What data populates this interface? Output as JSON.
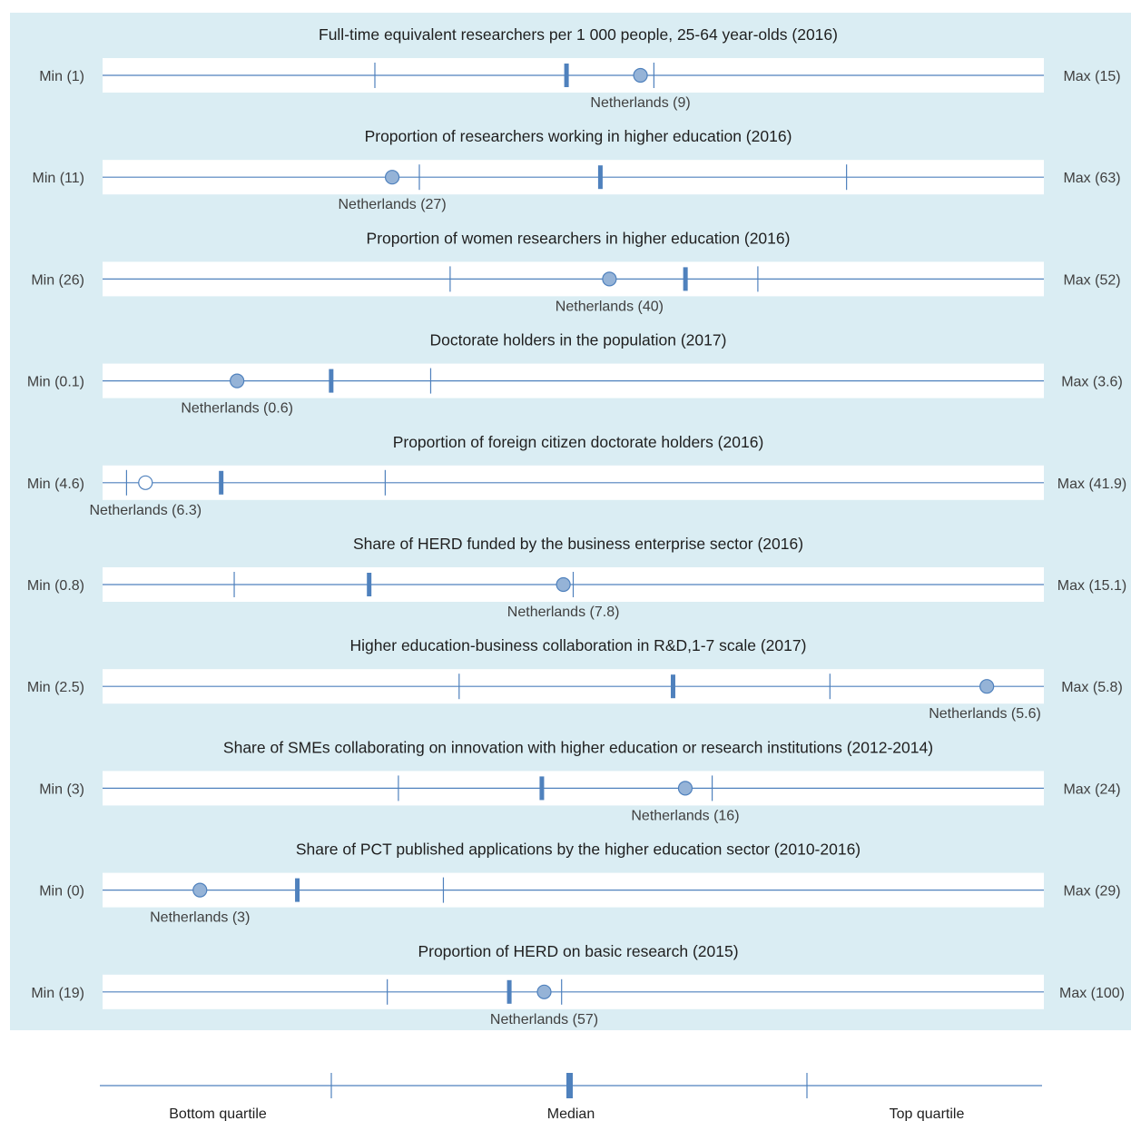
{
  "chart_data": [
    {
      "type": "bullet",
      "title": "Full-time equivalent researchers per 1 000 people, 25-64 year-olds (2016)",
      "min": 1,
      "max": 15,
      "min_label": "Min (1)",
      "max_label": "Max (15)",
      "q1": 5.05,
      "median": 7.9,
      "q3": 9.2,
      "country": "Netherlands",
      "value": 9,
      "value_label": "Netherlands (9)",
      "marker": "filled"
    },
    {
      "type": "bullet",
      "title": "Proportion of researchers working in higher education (2016)",
      "min": 11,
      "max": 63,
      "min_label": "Min (11)",
      "max_label": "Max (63)",
      "q1": 28.5,
      "median": 38.5,
      "q3": 52.1,
      "country": "Netherlands",
      "value": 27,
      "value_label": "Netherlands (27)",
      "marker": "filled"
    },
    {
      "type": "bullet",
      "title": "Proportion of women researchers in higher education (2016)",
      "min": 26,
      "max": 52,
      "min_label": "Min (26)",
      "max_label": "Max (52)",
      "q1": 35.6,
      "median": 42.1,
      "q3": 44.1,
      "country": "Netherlands",
      "value": 40,
      "value_label": "Netherlands (40)",
      "marker": "filled"
    },
    {
      "type": "bullet",
      "title": "Doctorate holders in the population (2017)",
      "min": 0.1,
      "max": 3.6,
      "min_label": "Min (0.1)",
      "max_label": "Max (3.6)",
      "q1": null,
      "median": 0.95,
      "q3": 1.32,
      "country": "Netherlands",
      "value": 0.6,
      "value_label": "Netherlands (0.6)",
      "marker": "filled"
    },
    {
      "type": "bullet",
      "title": "Proportion of foreign citizen doctorate holders (2016)",
      "min": 4.6,
      "max": 41.9,
      "min_label": "Min (4.6)",
      "max_label": "Max (41.9)",
      "q1": 5.55,
      "median": 9.3,
      "q3": 15.8,
      "country": "Netherlands",
      "value": 6.3,
      "value_label": "Netherlands (6.3)",
      "marker": "hollow"
    },
    {
      "type": "bullet",
      "title": "Share of HERD funded by the business enterprise sector (2016)",
      "min": 0.8,
      "max": 15.1,
      "min_label": "Min (0.8)",
      "max_label": "Max (15.1)",
      "q1": 2.8,
      "median": 4.85,
      "q3": 7.95,
      "country": "Netherlands",
      "value": 7.8,
      "value_label": "Netherlands (7.8)",
      "marker": "filled"
    },
    {
      "type": "bullet",
      "title": "Higher education-business collaboration in R&D,1-7 scale (2017)",
      "min": 2.5,
      "max": 5.8,
      "min_label": "Min (2.5)",
      "max_label": "Max (5.8)",
      "q1": 3.75,
      "median": 4.5,
      "q3": 5.05,
      "country": "Netherlands",
      "value": 5.6,
      "value_label": "Netherlands (5.6)",
      "marker": "filled"
    },
    {
      "type": "bullet",
      "title": "Share of SMEs collaborating on innovation with higher education or research institutions (2012-2014)",
      "min": 3,
      "max": 24,
      "min_label": "Min (3)",
      "max_label": "Max (24)",
      "q1": 9.6,
      "median": 12.8,
      "q3": 16.6,
      "country": "Netherlands",
      "value": 16,
      "value_label": "Netherlands (16)",
      "marker": "filled"
    },
    {
      "type": "bullet",
      "title": "Share of PCT published applications by the higher education sector (2010-2016)",
      "min": 0,
      "max": 29,
      "min_label": "Min (0)",
      "max_label": "Max (29)",
      "q1": null,
      "median": 6.0,
      "q3": 10.5,
      "country": "Netherlands",
      "value": 3,
      "value_label": "Netherlands (3)",
      "marker": "filled"
    },
    {
      "type": "bullet",
      "title": "Proportion of HERD on basic research (2015)",
      "min": 19,
      "max": 100,
      "min_label": "Min (19)",
      "max_label": "Max (100)",
      "q1": 43.5,
      "median": 54,
      "q3": 58.5,
      "country": "Netherlands",
      "value": 57,
      "value_label": "Netherlands (57)",
      "marker": "filled"
    }
  ],
  "legend": {
    "bottom_quartile": "Bottom quartile",
    "median": "Median",
    "top_quartile": "Top quartile"
  },
  "colors": {
    "panel": "#daedf3",
    "bar": "#ffffff",
    "line": "#4f81bd",
    "median": "#4f81bd",
    "marker_fill": "#95b3d7",
    "marker_stroke": "#4f81bd",
    "text": "#1f1f1f",
    "label": "#404040"
  }
}
